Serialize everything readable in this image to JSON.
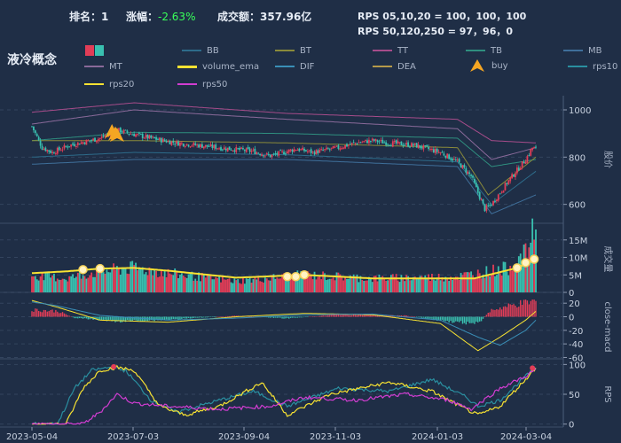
{
  "header": {
    "rank_label": "排名：1",
    "change_label": "涨幅：",
    "change_value": "-2.63%",
    "volume_label": "成交额：357.96亿",
    "rps_line1": "RPS 05,10,20 = 100，100，100",
    "rps_line2": "RPS 50,120,250 = 97，96，0"
  },
  "title": "液冷概念",
  "legend": [
    {
      "name": "BB",
      "color": "#2d6b8a"
    },
    {
      "name": "BT",
      "color": "#8a8a3a"
    },
    {
      "name": "TT",
      "color": "#a64c8a"
    },
    {
      "name": "TB",
      "color": "#2f8f7f"
    },
    {
      "name": "MB",
      "color": "#3f6f9a"
    },
    {
      "name": "MT",
      "color": "#8a6a9a"
    },
    {
      "name": "volume_ema",
      "color": "#f7e232"
    },
    {
      "name": "DIF",
      "color": "#3a8fb7"
    },
    {
      "name": "DEA",
      "color": "#b59a4a"
    },
    {
      "name": "buy",
      "color": "#f5a623"
    },
    {
      "name": "rps10",
      "color": "#2a8fa0"
    },
    {
      "name": "rps20",
      "color": "#f7e232"
    },
    {
      "name": "rps50",
      "color": "#d23dd2"
    }
  ],
  "colors": {
    "up": "#e23d57",
    "down": "#39c0b0",
    "ema": "#f7e232",
    "dif": "#f7e232",
    "dea": "#3a8fb7"
  },
  "chart_data": [
    {
      "type": "candlestick",
      "ylabel": "股价",
      "ylim": [
        520,
        1060
      ],
      "yticks": [
        600,
        800,
        1000
      ],
      "x_dates": [
        "2023-05-04",
        "2023-07-03",
        "2023-09-04",
        "2023-11-03",
        "2024-01-03",
        "2024-03-04"
      ],
      "close_path": [
        [
          0,
          930
        ],
        [
          6,
          840
        ],
        [
          12,
          820
        ],
        [
          22,
          850
        ],
        [
          40,
          880
        ],
        [
          50,
          915
        ],
        [
          58,
          900
        ],
        [
          70,
          880
        ],
        [
          85,
          860
        ],
        [
          110,
          840
        ],
        [
          130,
          825
        ],
        [
          140,
          805
        ],
        [
          155,
          835
        ],
        [
          165,
          820
        ],
        [
          180,
          840
        ],
        [
          190,
          860
        ],
        [
          200,
          870
        ],
        [
          210,
          860
        ],
        [
          225,
          850
        ],
        [
          240,
          820
        ],
        [
          250,
          780
        ],
        [
          258,
          720
        ],
        [
          262,
          650
        ],
        [
          266,
          580
        ],
        [
          270,
          600
        ],
        [
          280,
          700
        ],
        [
          290,
          790
        ],
        [
          294,
          840
        ],
        [
          296,
          835
        ]
      ],
      "series": [
        {
          "name": "TT",
          "values_path": [
            [
              0,
              990
            ],
            [
              60,
              1030
            ],
            [
              150,
              985
            ],
            [
              250,
              960
            ],
            [
              270,
              870
            ],
            [
              296,
              860
            ]
          ]
        },
        {
          "name": "MT",
          "values_path": [
            [
              0,
              940
            ],
            [
              60,
              1000
            ],
            [
              150,
              960
            ],
            [
              250,
              920
            ],
            [
              270,
              790
            ],
            [
              296,
              840
            ]
          ]
        },
        {
          "name": "TB",
          "values_path": [
            [
              0,
              870
            ],
            [
              60,
              905
            ],
            [
              150,
              900
            ],
            [
              250,
              880
            ],
            [
              270,
              760
            ],
            [
              296,
              790
            ]
          ]
        },
        {
          "name": "BT",
          "values_path": [
            [
              0,
              870
            ],
            [
              60,
              870
            ],
            [
              150,
              860
            ],
            [
              250,
              840
            ],
            [
              268,
              640
            ],
            [
              296,
              800
            ]
          ]
        },
        {
          "name": "BB",
          "values_path": [
            [
              0,
              800
            ],
            [
              60,
              820
            ],
            [
              150,
              810
            ],
            [
              250,
              780
            ],
            [
              270,
              600
            ],
            [
              296,
              740
            ]
          ]
        },
        {
          "name": "MB",
          "values_path": [
            [
              0,
              770
            ],
            [
              60,
              790
            ],
            [
              150,
              790
            ],
            [
              250,
              760
            ],
            [
              270,
              560
            ],
            [
              296,
              640
            ]
          ]
        }
      ],
      "buy_signals": [
        {
          "i": 47,
          "value": 880
        },
        {
          "i": 49,
          "value": 870
        },
        {
          "i": 50,
          "value": 865
        }
      ]
    },
    {
      "type": "bar",
      "ylabel": "成交量",
      "ylim": [
        0,
        19
      ],
      "yticks": [
        0,
        5,
        10,
        15
      ],
      "ytick_labels": [
        "0",
        "5M",
        "10M",
        "15M"
      ],
      "volume_path": [
        [
          0,
          5
        ],
        [
          20,
          4
        ],
        [
          40,
          6
        ],
        [
          60,
          7
        ],
        [
          80,
          5.5
        ],
        [
          120,
          3.2
        ],
        [
          160,
          5
        ],
        [
          200,
          4
        ],
        [
          250,
          4.5
        ],
        [
          280,
          7
        ],
        [
          290,
          11
        ],
        [
          296,
          19
        ]
      ],
      "ema_path": [
        [
          0,
          5.5
        ],
        [
          20,
          6
        ],
        [
          40,
          6.8
        ],
        [
          60,
          7
        ],
        [
          80,
          6.2
        ],
        [
          120,
          4.2
        ],
        [
          160,
          5
        ],
        [
          200,
          4
        ],
        [
          260,
          4
        ],
        [
          285,
          7
        ],
        [
          296,
          9.5
        ]
      ],
      "markers": [
        {
          "i": 30,
          "value": 6.5
        },
        {
          "i": 40,
          "value": 6.8
        },
        {
          "i": 150,
          "value": 4.5
        },
        {
          "i": 155,
          "value": 4.5
        },
        {
          "i": 160,
          "value": 5
        },
        {
          "i": 285,
          "value": 7
        },
        {
          "i": 290,
          "value": 8.5
        },
        {
          "i": 295,
          "value": 9.5
        }
      ]
    },
    {
      "type": "macd",
      "ylabel": "close-macd",
      "ylim": [
        -62,
        32
      ],
      "yticks": [
        20,
        0,
        -20,
        -40,
        -60
      ],
      "hist_path": [
        [
          0,
          12
        ],
        [
          15,
          10
        ],
        [
          25,
          -2
        ],
        [
          50,
          -8
        ],
        [
          80,
          -5
        ],
        [
          120,
          2
        ],
        [
          150,
          -3
        ],
        [
          180,
          4
        ],
        [
          220,
          2
        ],
        [
          245,
          -8
        ],
        [
          262,
          -12
        ],
        [
          270,
          12
        ],
        [
          285,
          22
        ],
        [
          296,
          28
        ]
      ],
      "dif_path": [
        [
          0,
          24
        ],
        [
          15,
          14
        ],
        [
          40,
          -5
        ],
        [
          80,
          -8
        ],
        [
          120,
          0
        ],
        [
          160,
          5
        ],
        [
          200,
          3
        ],
        [
          240,
          -10
        ],
        [
          262,
          -50
        ],
        [
          275,
          -30
        ],
        [
          290,
          -5
        ],
        [
          296,
          8
        ]
      ],
      "dea_path": [
        [
          0,
          22
        ],
        [
          15,
          16
        ],
        [
          40,
          2
        ],
        [
          80,
          -5
        ],
        [
          120,
          -2
        ],
        [
          160,
          3
        ],
        [
          200,
          4
        ],
        [
          240,
          -5
        ],
        [
          262,
          -30
        ],
        [
          275,
          -42
        ],
        [
          290,
          -20
        ],
        [
          296,
          -5
        ]
      ]
    },
    {
      "type": "line",
      "ylabel": "RPS",
      "ylim": [
        -5,
        105
      ],
      "yticks": [
        0,
        50,
        100
      ],
      "series": [
        {
          "name": "rps10",
          "values_path": [
            [
              0,
              0
            ],
            [
              15,
              0
            ],
            [
              25,
              60
            ],
            [
              35,
              90
            ],
            [
              45,
              95
            ],
            [
              55,
              90
            ],
            [
              70,
              40
            ],
            [
              85,
              20
            ],
            [
              110,
              40
            ],
            [
              130,
              55
            ],
            [
              150,
              30
            ],
            [
              180,
              60
            ],
            [
              210,
              55
            ],
            [
              235,
              75
            ],
            [
              255,
              45
            ],
            [
              262,
              30
            ],
            [
              275,
              40
            ],
            [
              290,
              80
            ],
            [
              296,
              95
            ]
          ]
        },
        {
          "name": "rps20",
          "values_path": [
            [
              0,
              0
            ],
            [
              20,
              0
            ],
            [
              30,
              60
            ],
            [
              40,
              90
            ],
            [
              50,
              95
            ],
            [
              60,
              90
            ],
            [
              75,
              30
            ],
            [
              90,
              15
            ],
            [
              110,
              30
            ],
            [
              135,
              70
            ],
            [
              150,
              15
            ],
            [
              175,
              50
            ],
            [
              210,
              70
            ],
            [
              235,
              55
            ],
            [
              255,
              25
            ],
            [
              262,
              15
            ],
            [
              275,
              30
            ],
            [
              290,
              75
            ],
            [
              296,
              95
            ]
          ]
        },
        {
          "name": "rps50",
          "values_path": [
            [
              0,
              0
            ],
            [
              30,
              0
            ],
            [
              40,
              20
            ],
            [
              50,
              50
            ],
            [
              60,
              35
            ],
            [
              80,
              30
            ],
            [
              110,
              25
            ],
            [
              140,
              30
            ],
            [
              160,
              45
            ],
            [
              190,
              40
            ],
            [
              220,
              50
            ],
            [
              245,
              40
            ],
            [
              258,
              25
            ],
            [
              275,
              60
            ],
            [
              290,
              80
            ],
            [
              296,
              92
            ]
          ]
        }
      ]
    }
  ]
}
